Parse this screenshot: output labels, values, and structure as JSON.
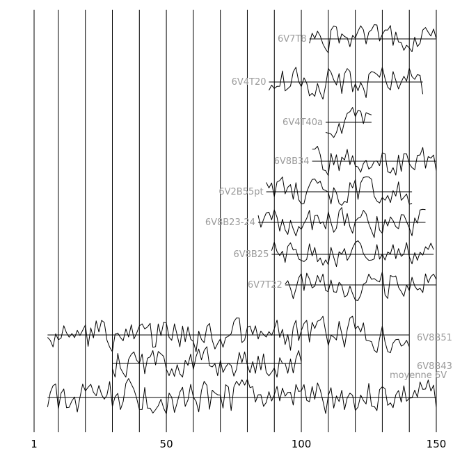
{
  "chart_data": {
    "type": "line",
    "title": "",
    "xlabel": "",
    "ylabel": "",
    "xlim": [
      1,
      150
    ],
    "x_ticks": [
      1,
      50,
      100,
      150
    ],
    "grid": "vertical lines every 10 years",
    "series": [
      {
        "name": "6V7T8",
        "start": 103,
        "end": 150
      },
      {
        "name": "6V4T20",
        "start": 88,
        "end": 145
      },
      {
        "name": "6V4T40a",
        "start": 109,
        "end": 126
      },
      {
        "name": "6V8B34",
        "start": 104,
        "end": 150
      },
      {
        "name": "6V2B55pt",
        "start": 87,
        "end": 141
      },
      {
        "name": "6V8B23-24",
        "start": 84,
        "end": 146
      },
      {
        "name": "6V8B25",
        "start": 89,
        "end": 149
      },
      {
        "name": "6V7T22",
        "start": 94,
        "end": 150
      },
      {
        "name": "6V8B51",
        "start": 6,
        "end": 140
      },
      {
        "name": "6V8B43",
        "start": 30,
        "end": 100
      },
      {
        "name": "moyenne 6V",
        "start": 6,
        "end": 150
      }
    ]
  }
}
